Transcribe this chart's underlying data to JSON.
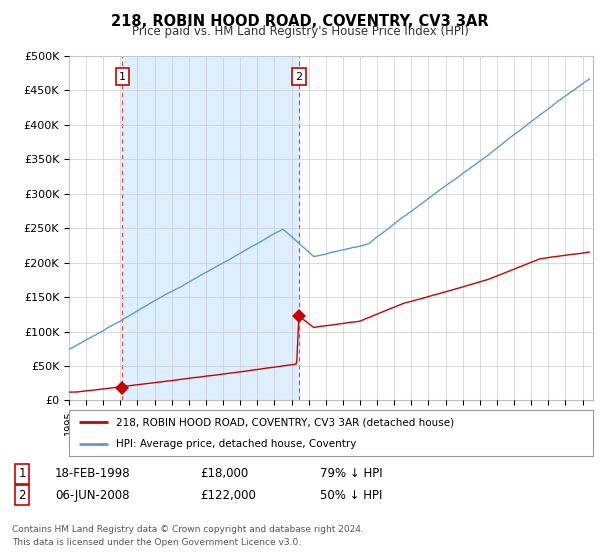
{
  "title": "218, ROBIN HOOD ROAD, COVENTRY, CV3 3AR",
  "subtitle": "Price paid vs. HM Land Registry's House Price Index (HPI)",
  "ylabel_ticks": [
    "£0",
    "£50K",
    "£100K",
    "£150K",
    "£200K",
    "£250K",
    "£300K",
    "£350K",
    "£400K",
    "£450K",
    "£500K"
  ],
  "ytick_values": [
    0,
    50000,
    100000,
    150000,
    200000,
    250000,
    300000,
    350000,
    400000,
    450000,
    500000
  ],
  "ylim": [
    0,
    500000
  ],
  "sale1_date": 1998.12,
  "sale1_price": 18000,
  "sale2_date": 2008.43,
  "sale2_price": 122000,
  "hpi_color": "#5b9bd5",
  "hpi_fill_color": "#ddeeff",
  "price_color": "#cc0000",
  "vline_color": "#dd4444",
  "legend_label_price": "218, ROBIN HOOD ROAD, COVENTRY, CV3 3AR (detached house)",
  "legend_label_hpi": "HPI: Average price, detached house, Coventry",
  "footer": "Contains HM Land Registry data © Crown copyright and database right 2024.\nThis data is licensed under the Open Government Licence v3.0.",
  "background_color": "#ffffff",
  "grid_color": "#cccccc"
}
